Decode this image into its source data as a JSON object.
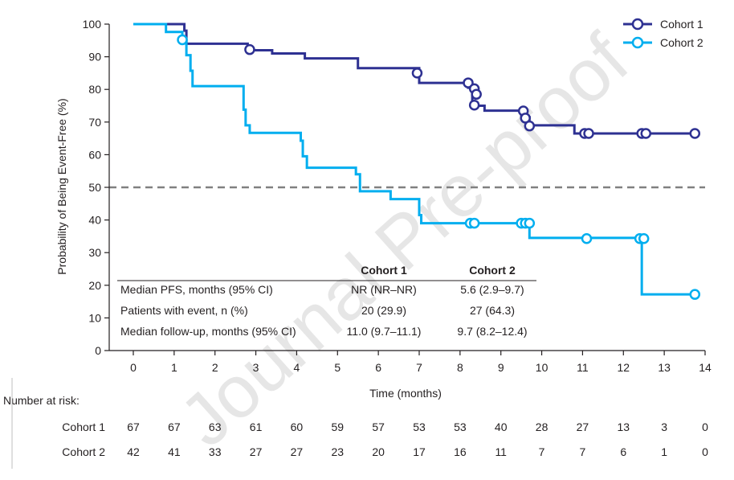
{
  "watermark": "Journal Pre-proof",
  "chart_data": {
    "type": "line",
    "step": true,
    "xlabel": "Time (months)",
    "ylabel": "Probability of Being Event-Free (%)",
    "xlim": [
      0,
      14
    ],
    "ylim": [
      0,
      100
    ],
    "x_ticks": [
      "0",
      "1",
      "2",
      "3",
      "4",
      "5",
      "6",
      "7",
      "8",
      "9",
      "10",
      "11",
      "12",
      "13",
      "14"
    ],
    "y_ticks": [
      "0",
      "10",
      "20",
      "30",
      "40",
      "50",
      "60",
      "70",
      "80",
      "90",
      "100"
    ],
    "reference_line": {
      "y": 50,
      "style": "dashed",
      "color": "#808080"
    },
    "legend": {
      "position": "top-right"
    },
    "series": [
      {
        "name": "Cohort 1",
        "color": "#2e3192",
        "steps": [
          [
            0,
            100
          ],
          [
            1.25,
            98
          ],
          [
            1.3,
            94
          ],
          [
            2.8,
            92
          ],
          [
            3.4,
            91
          ],
          [
            4.2,
            89.5
          ],
          [
            5.5,
            86.5
          ],
          [
            7,
            82
          ],
          [
            8.2,
            80.5
          ],
          [
            8.3,
            75
          ],
          [
            8.6,
            73.5
          ],
          [
            9.5,
            71.5
          ],
          [
            9.7,
            69
          ],
          [
            10.8,
            66.5
          ],
          [
            13.8,
            66.5
          ]
        ],
        "censored": [
          [
            2.85,
            92.2
          ],
          [
            6.95,
            85
          ],
          [
            8.2,
            82
          ],
          [
            8.35,
            80.2
          ],
          [
            8.4,
            78.5
          ],
          [
            8.35,
            75.2
          ],
          [
            9.55,
            73.4
          ],
          [
            9.6,
            71.2
          ],
          [
            9.7,
            68.8
          ],
          [
            11.05,
            66.5
          ],
          [
            11.15,
            66.5
          ],
          [
            12.45,
            66.5
          ],
          [
            12.55,
            66.5
          ],
          [
            13.75,
            66.5
          ]
        ]
      },
      {
        "name": "Cohort 2",
        "color": "#00aeef",
        "steps": [
          [
            0,
            100
          ],
          [
            0.8,
            97.6
          ],
          [
            1.2,
            95.2
          ],
          [
            1.3,
            90.5
          ],
          [
            1.4,
            85.7
          ],
          [
            1.45,
            81
          ],
          [
            2.7,
            73.8
          ],
          [
            2.75,
            69
          ],
          [
            2.85,
            66.7
          ],
          [
            4.1,
            64.3
          ],
          [
            4.15,
            59.5
          ],
          [
            4.25,
            56
          ],
          [
            5.45,
            54
          ],
          [
            5.55,
            48.8
          ],
          [
            6.3,
            46.4
          ],
          [
            7,
            41.5
          ],
          [
            7.05,
            39
          ],
          [
            9.7,
            34.5
          ],
          [
            12.45,
            17.2
          ],
          [
            13.75,
            17.2
          ]
        ],
        "censored": [
          [
            1.2,
            95.2
          ],
          [
            8.25,
            39
          ],
          [
            8.35,
            39
          ],
          [
            9.5,
            39
          ],
          [
            9.6,
            39
          ],
          [
            9.7,
            39
          ],
          [
            11.1,
            34.3
          ],
          [
            12.4,
            34.3
          ],
          [
            12.5,
            34.3
          ],
          [
            13.75,
            17.2
          ]
        ]
      }
    ],
    "table": {
      "headers": [
        "",
        "Cohort 1",
        "Cohort 2"
      ],
      "rows": [
        [
          "Median PFS, months (95% CI)",
          "NR (NR–NR)",
          "5.6 (2.9–9.7)"
        ],
        [
          "Patients with event, n (%)",
          "20 (29.9)",
          "27 (64.3)"
        ],
        [
          "Median follow-up, months (95% CI)",
          "11.0 (9.7–11.1)",
          "9.7 (8.2–12.4)"
        ]
      ]
    },
    "risk_table": {
      "title": "Number at risk:",
      "rows": [
        {
          "label": "Cohort 1",
          "values": [
            "67",
            "67",
            "63",
            "61",
            "60",
            "59",
            "57",
            "53",
            "53",
            "40",
            "28",
            "27",
            "13",
            "3",
            "0"
          ]
        },
        {
          "label": "Cohort 2",
          "values": [
            "42",
            "41",
            "33",
            "27",
            "27",
            "23",
            "20",
            "17",
            "16",
            "11",
            "7",
            "7",
            "6",
            "1",
            "0"
          ]
        }
      ]
    }
  }
}
